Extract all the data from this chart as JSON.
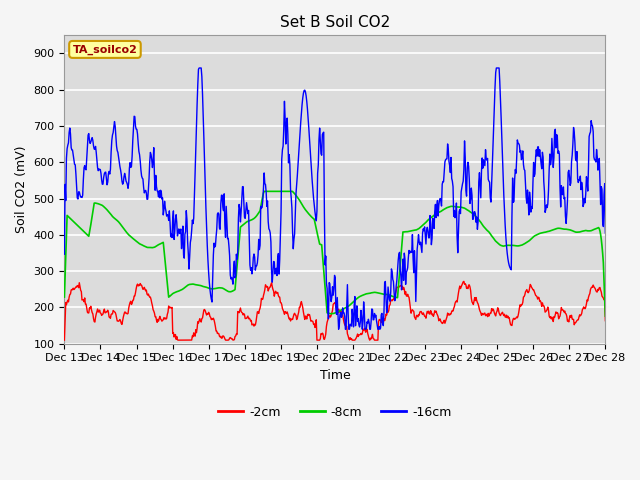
{
  "title": "Set B Soil CO2",
  "ylabel": "Soil CO2 (mV)",
  "xlabel": "Time",
  "annotation": "TA_soilco2",
  "legend_labels": [
    "-2cm",
    "-8cm",
    "-16cm"
  ],
  "legend_colors": [
    "#ff0000",
    "#00cc00",
    "#0000ff"
  ],
  "plot_bg_color": "#dcdcdc",
  "fig_bg_color": "#f5f5f5",
  "ylim": [
    100,
    950
  ],
  "yticks": [
    100,
    200,
    300,
    400,
    500,
    600,
    700,
    800,
    900
  ],
  "x_tick_labels": [
    "Dec 13",
    "Dec 14",
    "Dec 15",
    "Dec 16",
    "Dec 17",
    "Dec 18",
    "Dec 19",
    "Dec 20",
    "Dec 21",
    "Dec 22",
    "Dec 23",
    "Dec 24",
    "Dec 25",
    "Dec 26",
    "Dec 27",
    "Dec 28"
  ],
  "num_points": 800,
  "title_fontsize": 11
}
